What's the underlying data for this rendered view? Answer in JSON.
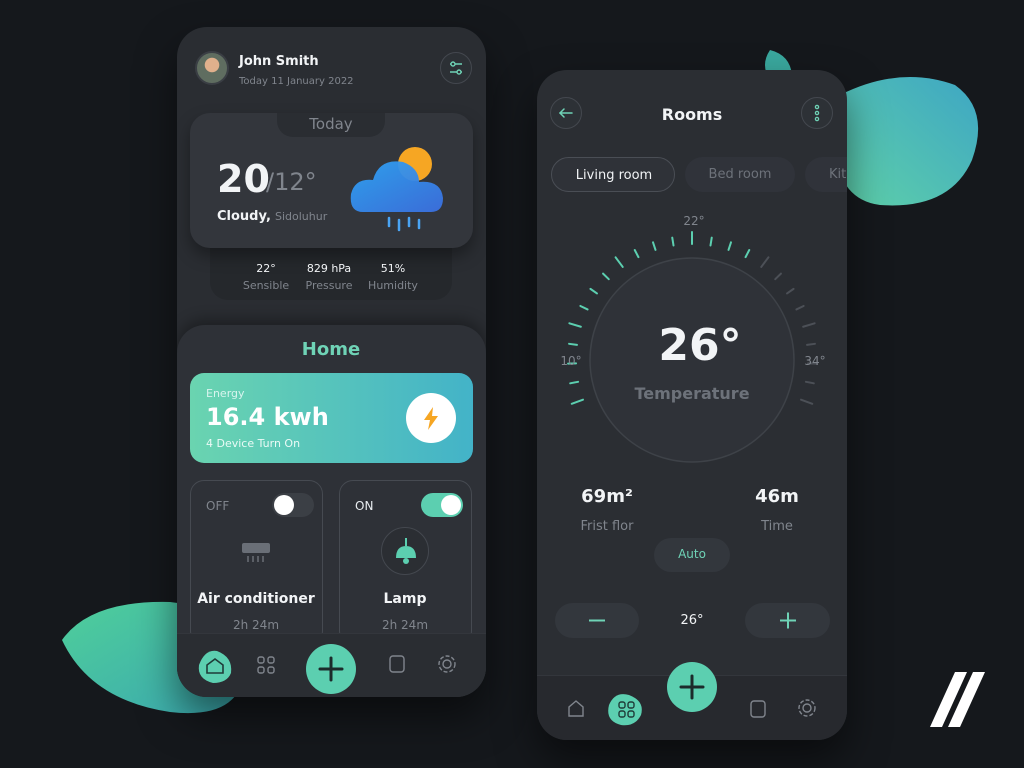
{
  "left_phone": {
    "user": {
      "name": "John Smith",
      "date": "Today  11 January 2022"
    },
    "weather": {
      "tab": "Today",
      "temp_high": "20",
      "temp_low": "/12°",
      "condition": "Cloudy,",
      "location": "Sidoluhur",
      "stats": [
        {
          "value": "22°",
          "label": "Sensible"
        },
        {
          "value": "829 hPa",
          "label": "Pressure"
        },
        {
          "value": "51%",
          "label": "Humidity"
        }
      ]
    },
    "home": {
      "title": "Home",
      "energy": {
        "label": "Energy",
        "value": "16.4 kwh",
        "note": "4 Device Turn On"
      },
      "devices": [
        {
          "state": "OFF",
          "name": "Air conditioner",
          "time": "2h 24m"
        },
        {
          "state": "ON",
          "name": "Lamp",
          "time": "2h 24m"
        }
      ]
    }
  },
  "right_phone": {
    "title": "Rooms",
    "rooms": [
      "Living room",
      "Bed room",
      "Kit"
    ],
    "dial": {
      "top": "22°",
      "min": "10°",
      "max": "34°",
      "value": "26°",
      "label": "Temperature"
    },
    "stats": [
      {
        "value": "69m²",
        "label": "Frist flor"
      },
      {
        "value": "46m",
        "label": "Time"
      }
    ],
    "mode": "Auto",
    "setpoint": "26°"
  }
}
